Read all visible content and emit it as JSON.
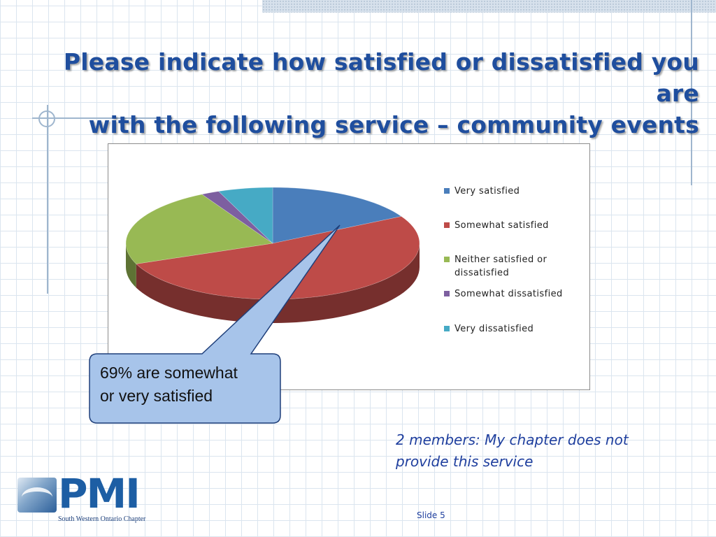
{
  "slide": {
    "title_line1": "Please indicate how satisfied or dissatisfied you are",
    "title_line2": "with the following service – community events",
    "callout_line1": "69% are somewhat",
    "callout_line2": "or very satisfied",
    "note_line1": "2 members: My chapter does not",
    "note_line2": "provide this service",
    "slide_number": "Slide 5",
    "logo_text": "PMI",
    "logo_caption": "South Western Ontario Chapter"
  },
  "colors": {
    "title": "#1f4e9e",
    "callout_fill": "#a7c4ea",
    "callout_border": "#1f3f7a",
    "note": "#1f3f9e"
  },
  "chart_data": {
    "type": "pie",
    "style": "3d",
    "legend_position": "right",
    "categories": [
      "Very satisfied",
      "Somewhat satisfied",
      "Neither satisfied or dissatisfied",
      "Somewhat dissatisfied",
      "Very dissatisfied"
    ],
    "values": [
      17,
      52,
      23,
      2,
      6
    ],
    "colors": [
      "#4a7ebb",
      "#be4b48",
      "#98b954",
      "#7d5fa0",
      "#46aac5"
    ]
  }
}
